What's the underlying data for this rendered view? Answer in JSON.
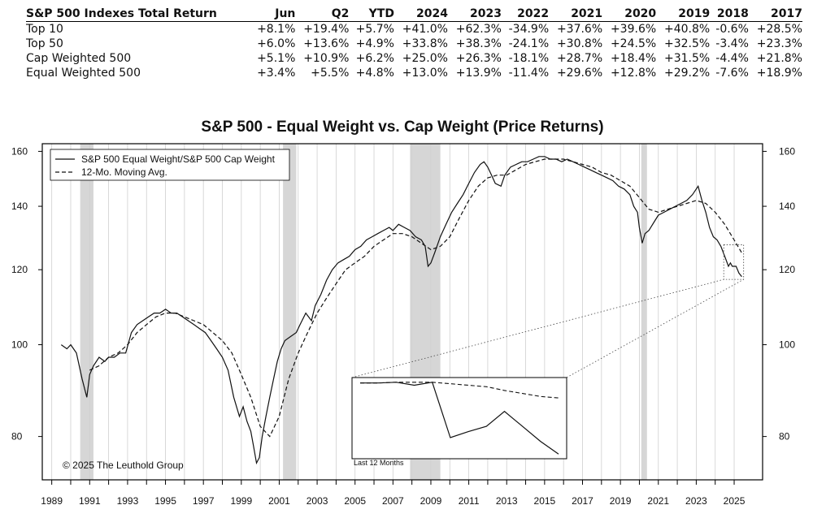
{
  "table": {
    "header_title": "S&P 500 Indexes Total Return",
    "columns": [
      "Jun",
      "Q2",
      "YTD",
      "2024",
      "2023",
      "2022",
      "2021",
      "2020",
      "2019",
      "2018",
      "2017"
    ],
    "rows": [
      {
        "label": "Top 10",
        "values": [
          "+8.1%",
          "+19.4%",
          "+5.7%",
          "+41.0%",
          "+62.3%",
          "-34.9%",
          "+37.6%",
          "+39.6%",
          "+40.8%",
          "-0.6%",
          "+28.5%"
        ]
      },
      {
        "label": "Top 50",
        "values": [
          "+6.0%",
          "+13.6%",
          "+4.9%",
          "+33.8%",
          "+38.3%",
          "-24.1%",
          "+30.8%",
          "+24.5%",
          "+32.5%",
          "-3.4%",
          "+23.3%"
        ]
      },
      {
        "label": "Cap Weighted 500",
        "values": [
          "+5.1%",
          "+10.9%",
          "+6.2%",
          "+25.0%",
          "+26.3%",
          "-18.1%",
          "+28.7%",
          "+18.4%",
          "+31.5%",
          "-4.4%",
          "+21.8%"
        ]
      },
      {
        "label": "Equal Weighted 500",
        "values": [
          "+3.4%",
          "+5.5%",
          "+4.8%",
          "+13.0%",
          "+13.9%",
          "-11.4%",
          "+29.6%",
          "+12.8%",
          "+29.2%",
          "-7.6%",
          "+18.9%"
        ]
      }
    ]
  },
  "chart_data": {
    "type": "line",
    "title": "S&P 500 - Equal Weight vs. Cap Weight (Price Returns)",
    "y_scale": "log",
    "ylim": [
      72,
      163
    ],
    "xlim": [
      1988.5,
      2026.5
    ],
    "y_ticks": [
      80,
      100,
      120,
      140,
      160
    ],
    "y_tick_labels": [
      "80",
      "100",
      "120",
      "140",
      "160"
    ],
    "x_ticks": [
      1989,
      1990,
      1991,
      1992,
      1993,
      1994,
      1995,
      1996,
      1997,
      1998,
      1999,
      2000,
      2001,
      2002,
      2003,
      2004,
      2005,
      2006,
      2007,
      2008,
      2009,
      2010,
      2011,
      2012,
      2013,
      2014,
      2015,
      2016,
      2017,
      2018,
      2019,
      2020,
      2021,
      2022,
      2023,
      2024,
      2025
    ],
    "x_tick_labels": [
      "1989",
      "1991",
      "1993",
      "1995",
      "1997",
      "1999",
      "2001",
      "2003",
      "2005",
      "2007",
      "2009",
      "2011",
      "2013",
      "2015",
      "2017",
      "2019",
      "2021",
      "2023",
      "2025"
    ],
    "x_tick_label_years": [
      1989,
      1991,
      1993,
      1995,
      1997,
      1999,
      2001,
      2003,
      2005,
      2007,
      2009,
      2011,
      2013,
      2015,
      2017,
      2019,
      2021,
      2023,
      2025
    ],
    "recessions": [
      [
        1990.5,
        1991.2
      ],
      [
        2001.2,
        2001.9
      ],
      [
        2007.9,
        2009.5
      ],
      [
        2020.1,
        2020.4
      ]
    ],
    "series": [
      {
        "name": "S&P 500 Equal Weight/S&P 500 Cap Weight",
        "style": "solid",
        "points": [
          [
            1989.5,
            100
          ],
          [
            1989.8,
            99
          ],
          [
            1990.0,
            100
          ],
          [
            1990.3,
            98
          ],
          [
            1990.6,
            92
          ],
          [
            1990.85,
            88
          ],
          [
            1991.0,
            93
          ],
          [
            1991.2,
            95
          ],
          [
            1991.5,
            97
          ],
          [
            1991.8,
            96
          ],
          [
            1992.0,
            97
          ],
          [
            1992.3,
            97
          ],
          [
            1992.6,
            98
          ],
          [
            1992.9,
            98
          ],
          [
            1993.2,
            103
          ],
          [
            1993.5,
            105
          ],
          [
            1993.8,
            106
          ],
          [
            1994.1,
            107
          ],
          [
            1994.4,
            108
          ],
          [
            1994.7,
            108
          ],
          [
            1995.0,
            109
          ],
          [
            1995.3,
            108
          ],
          [
            1995.6,
            108
          ],
          [
            1995.9,
            107
          ],
          [
            1996.2,
            106
          ],
          [
            1996.5,
            105
          ],
          [
            1996.8,
            104
          ],
          [
            1997.1,
            103
          ],
          [
            1997.4,
            101
          ],
          [
            1997.7,
            99
          ],
          [
            1998.0,
            97
          ],
          [
            1998.3,
            94
          ],
          [
            1998.6,
            88
          ],
          [
            1998.9,
            84
          ],
          [
            1999.1,
            86
          ],
          [
            1999.3,
            83
          ],
          [
            1999.5,
            81
          ],
          [
            1999.65,
            78
          ],
          [
            1999.8,
            75
          ],
          [
            1999.95,
            76
          ],
          [
            2000.1,
            80
          ],
          [
            2000.3,
            84
          ],
          [
            2000.5,
            88
          ],
          [
            2000.7,
            92
          ],
          [
            2000.9,
            96
          ],
          [
            2001.1,
            99
          ],
          [
            2001.3,
            101
          ],
          [
            2001.6,
            102
          ],
          [
            2001.9,
            103
          ],
          [
            2002.1,
            105
          ],
          [
            2002.4,
            108
          ],
          [
            2002.7,
            106
          ],
          [
            2002.9,
            110
          ],
          [
            2003.2,
            113
          ],
          [
            2003.5,
            117
          ],
          [
            2003.8,
            120
          ],
          [
            2004.1,
            122
          ],
          [
            2004.4,
            123
          ],
          [
            2004.7,
            124
          ],
          [
            2005.0,
            126
          ],
          [
            2005.3,
            127
          ],
          [
            2005.6,
            129
          ],
          [
            2005.9,
            130
          ],
          [
            2006.2,
            131
          ],
          [
            2006.5,
            132
          ],
          [
            2006.8,
            133
          ],
          [
            2007.0,
            132
          ],
          [
            2007.3,
            134
          ],
          [
            2007.6,
            133
          ],
          [
            2007.9,
            132
          ],
          [
            2008.2,
            130
          ],
          [
            2008.5,
            129
          ],
          [
            2008.7,
            127
          ],
          [
            2008.85,
            121
          ],
          [
            2009.0,
            122
          ],
          [
            2009.2,
            125
          ],
          [
            2009.5,
            130
          ],
          [
            2009.8,
            134
          ],
          [
            2010.1,
            138
          ],
          [
            2010.4,
            141
          ],
          [
            2010.7,
            144
          ],
          [
            2011.0,
            148
          ],
          [
            2011.3,
            152
          ],
          [
            2011.6,
            155
          ],
          [
            2011.8,
            156
          ],
          [
            2012.0,
            154
          ],
          [
            2012.2,
            151
          ],
          [
            2012.4,
            148
          ],
          [
            2012.7,
            147
          ],
          [
            2012.9,
            151
          ],
          [
            2013.2,
            154
          ],
          [
            2013.5,
            155
          ],
          [
            2013.8,
            156
          ],
          [
            2014.1,
            156
          ],
          [
            2014.4,
            157
          ],
          [
            2014.7,
            158
          ],
          [
            2015.0,
            158
          ],
          [
            2015.3,
            157
          ],
          [
            2015.6,
            157
          ],
          [
            2015.9,
            156
          ],
          [
            2016.2,
            157
          ],
          [
            2016.5,
            156
          ],
          [
            2016.8,
            155
          ],
          [
            2017.1,
            154
          ],
          [
            2017.4,
            153
          ],
          [
            2017.7,
            152
          ],
          [
            2018.0,
            151
          ],
          [
            2018.3,
            150
          ],
          [
            2018.6,
            149
          ],
          [
            2018.9,
            147
          ],
          [
            2019.2,
            146
          ],
          [
            2019.5,
            144
          ],
          [
            2019.7,
            140
          ],
          [
            2019.9,
            138
          ],
          [
            2020.0,
            133
          ],
          [
            2020.15,
            128
          ],
          [
            2020.3,
            131
          ],
          [
            2020.5,
            132
          ],
          [
            2020.8,
            135
          ],
          [
            2021.0,
            137
          ],
          [
            2021.3,
            138
          ],
          [
            2021.6,
            139
          ],
          [
            2021.9,
            140
          ],
          [
            2022.2,
            141
          ],
          [
            2022.5,
            142
          ],
          [
            2022.8,
            144
          ],
          [
            2023.0,
            146
          ],
          [
            2023.1,
            147
          ],
          [
            2023.3,
            142
          ],
          [
            2023.5,
            138
          ],
          [
            2023.7,
            133
          ],
          [
            2023.9,
            130
          ],
          [
            2024.1,
            129
          ],
          [
            2024.3,
            127
          ],
          [
            2024.5,
            124
          ],
          [
            2024.7,
            121
          ],
          [
            2024.8,
            122
          ],
          [
            2024.9,
            121
          ],
          [
            2025.1,
            121
          ],
          [
            2025.25,
            119
          ],
          [
            2025.4,
            118
          ]
        ]
      },
      {
        "name": "12-Mo. Moving Avg.",
        "style": "dashed",
        "points": [
          [
            1991.0,
            94
          ],
          [
            1991.5,
            95
          ],
          [
            1992.0,
            97
          ],
          [
            1992.5,
            98
          ],
          [
            1993.0,
            100
          ],
          [
            1993.5,
            103
          ],
          [
            1994.0,
            105
          ],
          [
            1994.5,
            107
          ],
          [
            1995.0,
            108
          ],
          [
            1995.5,
            108
          ],
          [
            1996.0,
            107
          ],
          [
            1996.5,
            106
          ],
          [
            1997.0,
            105
          ],
          [
            1997.5,
            103
          ],
          [
            1998.0,
            101
          ],
          [
            1998.5,
            98
          ],
          [
            1999.0,
            93
          ],
          [
            1999.5,
            88
          ],
          [
            2000.0,
            82
          ],
          [
            2000.5,
            80
          ],
          [
            2001.0,
            84
          ],
          [
            2001.5,
            92
          ],
          [
            2002.0,
            98
          ],
          [
            2002.5,
            103
          ],
          [
            2003.0,
            108
          ],
          [
            2003.5,
            112
          ],
          [
            2004.0,
            116
          ],
          [
            2004.5,
            120
          ],
          [
            2005.0,
            122
          ],
          [
            2005.5,
            124
          ],
          [
            2006.0,
            127
          ],
          [
            2006.5,
            129
          ],
          [
            2007.0,
            131
          ],
          [
            2007.5,
            131
          ],
          [
            2008.0,
            130
          ],
          [
            2008.5,
            128
          ],
          [
            2009.0,
            126
          ],
          [
            2009.5,
            127
          ],
          [
            2010.0,
            130
          ],
          [
            2010.5,
            136
          ],
          [
            2011.0,
            142
          ],
          [
            2011.5,
            147
          ],
          [
            2012.0,
            150
          ],
          [
            2012.5,
            151
          ],
          [
            2013.0,
            151
          ],
          [
            2013.5,
            153
          ],
          [
            2014.0,
            155
          ],
          [
            2014.5,
            156
          ],
          [
            2015.0,
            157
          ],
          [
            2015.5,
            157
          ],
          [
            2016.0,
            157
          ],
          [
            2016.5,
            156
          ],
          [
            2017.0,
            155
          ],
          [
            2017.5,
            154
          ],
          [
            2018.0,
            152
          ],
          [
            2018.5,
            151
          ],
          [
            2019.0,
            149
          ],
          [
            2019.5,
            147
          ],
          [
            2020.0,
            143
          ],
          [
            2020.5,
            139
          ],
          [
            2021.0,
            138
          ],
          [
            2021.5,
            139
          ],
          [
            2022.0,
            140
          ],
          [
            2022.5,
            141
          ],
          [
            2023.0,
            142
          ],
          [
            2023.5,
            141
          ],
          [
            2024.0,
            138
          ],
          [
            2024.5,
            134
          ],
          [
            2025.0,
            129
          ],
          [
            2025.4,
            125
          ]
        ]
      }
    ],
    "inset": {
      "label": "Last 12 Months",
      "equal_weight": [
        126.8,
        126.8,
        126.9,
        126.5,
        126.9,
        119.5,
        120.3,
        121.0,
        123.0,
        121.0,
        119.0,
        117.3
      ],
      "moving_avg": [
        126.8,
        126.8,
        126.9,
        126.9,
        126.9,
        126.7,
        126.5,
        126.3,
        125.8,
        125.4,
        125.0,
        124.8
      ]
    },
    "copyright": "© 2025 The Leuthold Group"
  }
}
